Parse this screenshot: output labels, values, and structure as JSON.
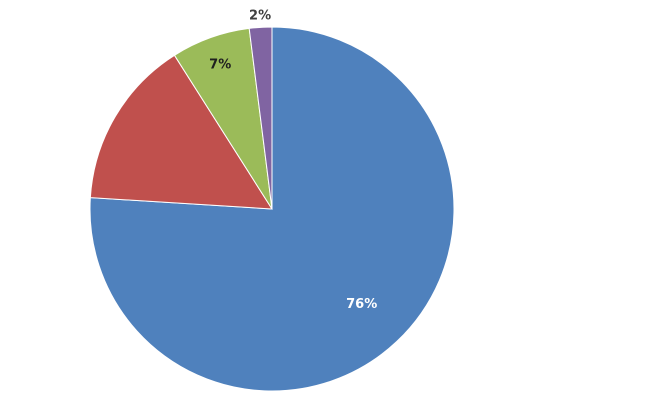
{
  "chart_data": {
    "type": "pie",
    "slices": [
      {
        "label": "",
        "value": 76,
        "display": "76%",
        "color": "#4f81bd"
      },
      {
        "label": "",
        "value": 15,
        "display": "",
        "color": "#c0504d"
      },
      {
        "label": "",
        "value": 7,
        "display": "7%",
        "color": "#9bbb59"
      },
      {
        "label": "",
        "value": 2,
        "display": "2%",
        "color": "#8064a2"
      }
    ],
    "title": "",
    "legend": "none"
  }
}
